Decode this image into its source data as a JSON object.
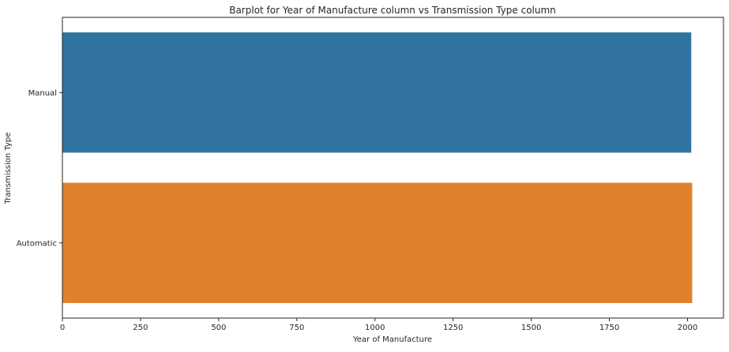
{
  "chart_data": {
    "type": "bar",
    "orientation": "horizontal",
    "title": "Barplot for Year of Manufacture column vs Transmission Type column",
    "xlabel": "Year of Manufacture",
    "ylabel": "Transmission Type",
    "categories": [
      "Manual",
      "Automatic"
    ],
    "values": [
      2012,
      2015
    ],
    "colors": [
      "#3274a1",
      "#e1812c"
    ],
    "xlim": [
      0,
      2115
    ],
    "xticks": [
      0,
      250,
      500,
      750,
      1000,
      1250,
      1500,
      1750,
      2000
    ],
    "grid": false,
    "legend": "none"
  }
}
